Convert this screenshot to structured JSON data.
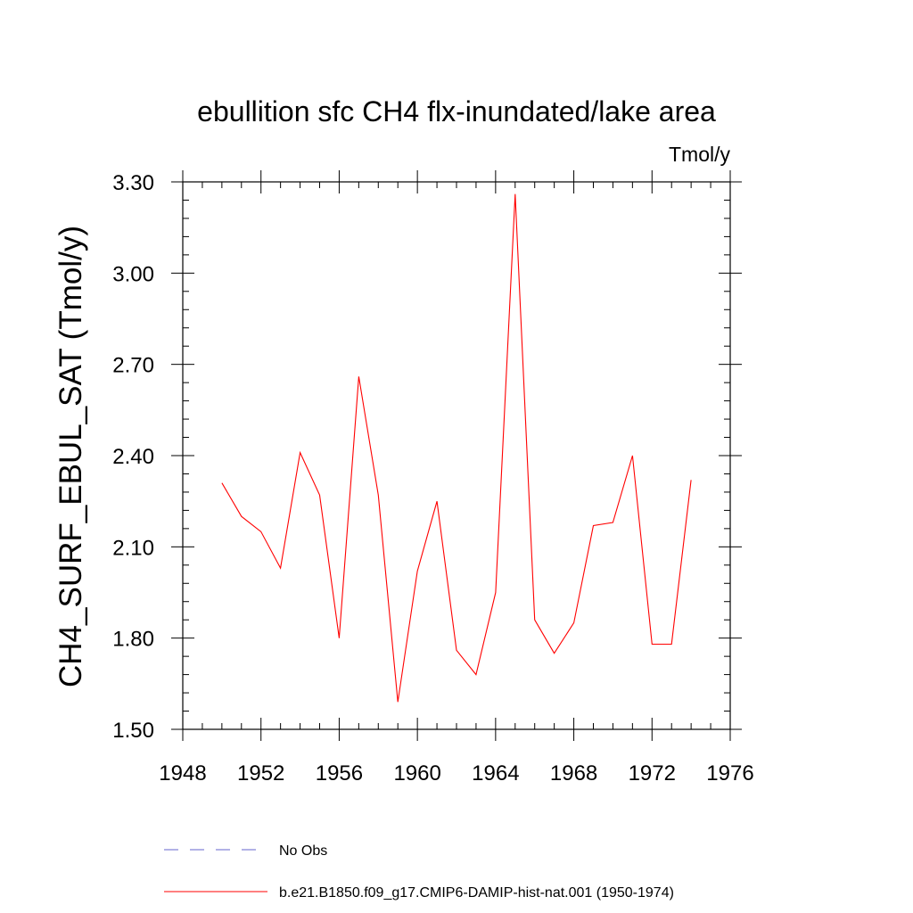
{
  "chart_data": {
    "type": "line",
    "title": "ebullition sfc CH4 flx-inundated/lake area",
    "units": "Tmol/y",
    "ylabel": "CH4_SURF_EBUL_SAT  (Tmol/y)",
    "xlabel": "",
    "xlim": [
      1948,
      1976
    ],
    "ylim": [
      1.5,
      3.3
    ],
    "xticks": [
      1948,
      1952,
      1956,
      1960,
      1964,
      1968,
      1972,
      1976
    ],
    "yticks": [
      "1.50",
      "1.80",
      "2.10",
      "2.40",
      "2.70",
      "3.00",
      "3.30"
    ],
    "grid": false,
    "legend_position": "bottom",
    "series": [
      {
        "name": "b.e21.B1850.f09_g17.CMIP6-DAMIP-hist-nat.001 (1950-1974)",
        "color": "#ff0000",
        "style": "solid",
        "x": [
          1950,
          1951,
          1952,
          1953,
          1954,
          1955,
          1956,
          1957,
          1958,
          1959,
          1960,
          1961,
          1962,
          1963,
          1964,
          1965,
          1966,
          1967,
          1968,
          1969,
          1970,
          1971,
          1972,
          1973,
          1974
        ],
        "values": [
          2.31,
          2.2,
          2.15,
          2.03,
          2.41,
          2.27,
          1.8,
          2.66,
          2.27,
          1.59,
          2.02,
          2.25,
          1.76,
          1.68,
          1.95,
          3.26,
          1.86,
          1.75,
          1.85,
          2.17,
          2.18,
          2.4,
          1.78,
          1.78,
          2.32
        ]
      }
    ],
    "legend": [
      {
        "label": "No Obs",
        "color": "#6666cc",
        "style": "dashed"
      },
      {
        "label": "b.e21.B1850.f09_g17.CMIP6-DAMIP-hist-nat.001 (1950-1974)",
        "color": "#ff0000",
        "style": "solid"
      }
    ]
  }
}
